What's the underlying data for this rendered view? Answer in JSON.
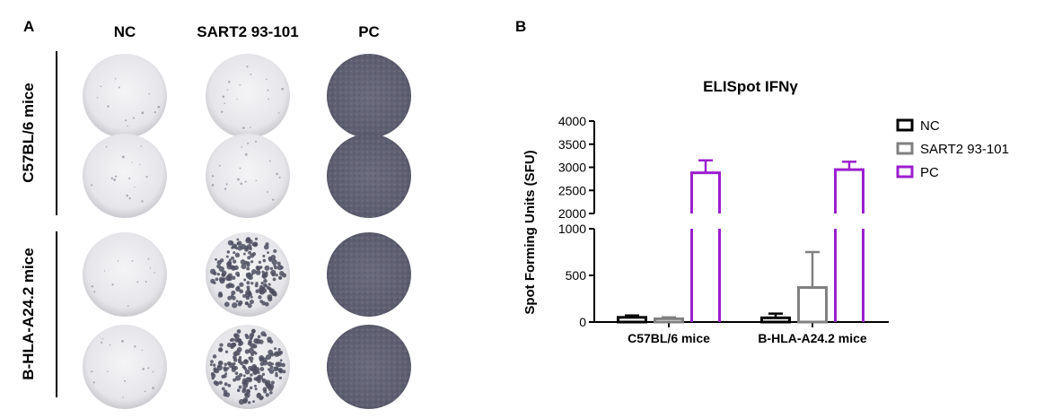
{
  "panel_a": {
    "letter": "A",
    "columns": [
      "NC",
      "SART2 93-101",
      "PC"
    ],
    "row_groups": [
      "C57BL/6 mice",
      "B-HLA-A24.2 mice"
    ],
    "well_levels": {
      "description_levels": "background spot density per well (0-1)",
      "rows": [
        [
          0.02,
          0.03,
          1.0
        ],
        [
          0.03,
          0.04,
          1.0
        ],
        [
          0.02,
          0.55,
          1.0
        ],
        [
          0.03,
          0.6,
          1.0
        ]
      ]
    }
  },
  "panel_b": {
    "letter": "B"
  },
  "chart_data": {
    "type": "bar",
    "title": "ELISpot IFNγ",
    "ylabel": "Spot Forming Units (SFU)",
    "xlabel": "",
    "categories": [
      "C57BL/6 mice",
      "B-HLA-A24.2 mice"
    ],
    "y_axis_broken": true,
    "lower_segment": {
      "range": [
        0,
        1000
      ],
      "ticks": [
        0,
        500,
        1000
      ]
    },
    "upper_segment": {
      "range": [
        2000,
        4000
      ],
      "ticks": [
        2000,
        2500,
        3000,
        3500,
        4000
      ]
    },
    "legend_position": "right",
    "series": [
      {
        "name": "NC",
        "color": "#000000",
        "values": [
          50,
          45
        ],
        "errors": [
          20,
          45
        ]
      },
      {
        "name": "SART2 93-101",
        "color": "#808080",
        "values": [
          35,
          370
        ],
        "errors": [
          15,
          380
        ]
      },
      {
        "name": "PC",
        "color": "#9b1fcf",
        "values": [
          2880,
          2950
        ],
        "errors": [
          270,
          170
        ]
      }
    ]
  }
}
